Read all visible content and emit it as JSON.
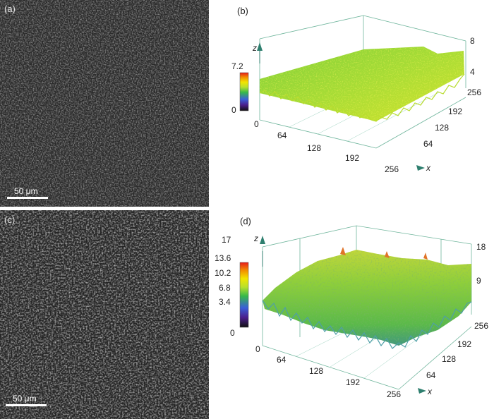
{
  "panels": {
    "a": {
      "label": "(a)",
      "scale_bar": "50 μm"
    },
    "b": {
      "label": "(b)",
      "z_label": "z",
      "x_label": "x",
      "colorbar_ticks": [
        "7.2",
        "0"
      ],
      "z_ticks": [
        "8",
        "4"
      ],
      "x_ticks": [
        "0",
        "64",
        "128",
        "192",
        "256"
      ],
      "y_ticks": [
        "256",
        "192",
        "128",
        "64"
      ]
    },
    "c": {
      "label": "(c)",
      "scale_bar": "50 μm"
    },
    "d": {
      "label": "(d)",
      "z_label": "z",
      "x_label": "x",
      "colorbar_ticks": [
        "17",
        "13.6",
        "10.2",
        "6.8",
        "3.4",
        "0"
      ],
      "z_ticks": [
        "18",
        "9"
      ],
      "x_ticks": [
        "0",
        "64",
        "128",
        "192",
        "256"
      ],
      "y_ticks": [
        "256",
        "192",
        "128",
        "64"
      ]
    }
  },
  "chart_data": [
    {
      "type": "surface",
      "x_range": [
        0,
        256
      ],
      "y_range": [
        0,
        256
      ],
      "z_range": [
        0,
        8
      ],
      "colorbar_range": [
        0,
        7.2
      ],
      "colors": [
        "#1a1a1a",
        "#3b1e8c",
        "#3b5fd9",
        "#3fbf3f",
        "#c8e632",
        "#f2e600",
        "#f28c00",
        "#e61a1a"
      ]
    },
    {
      "type": "surface",
      "x_range": [
        0,
        256
      ],
      "y_range": [
        0,
        256
      ],
      "z_range": [
        0,
        18
      ],
      "colorbar_range": [
        0,
        17
      ],
      "colors": [
        "#1a1a1a",
        "#3b1e8c",
        "#3b5fd9",
        "#3fbf3f",
        "#c8e632",
        "#f2e600",
        "#f28c00",
        "#e61a1a"
      ]
    }
  ]
}
